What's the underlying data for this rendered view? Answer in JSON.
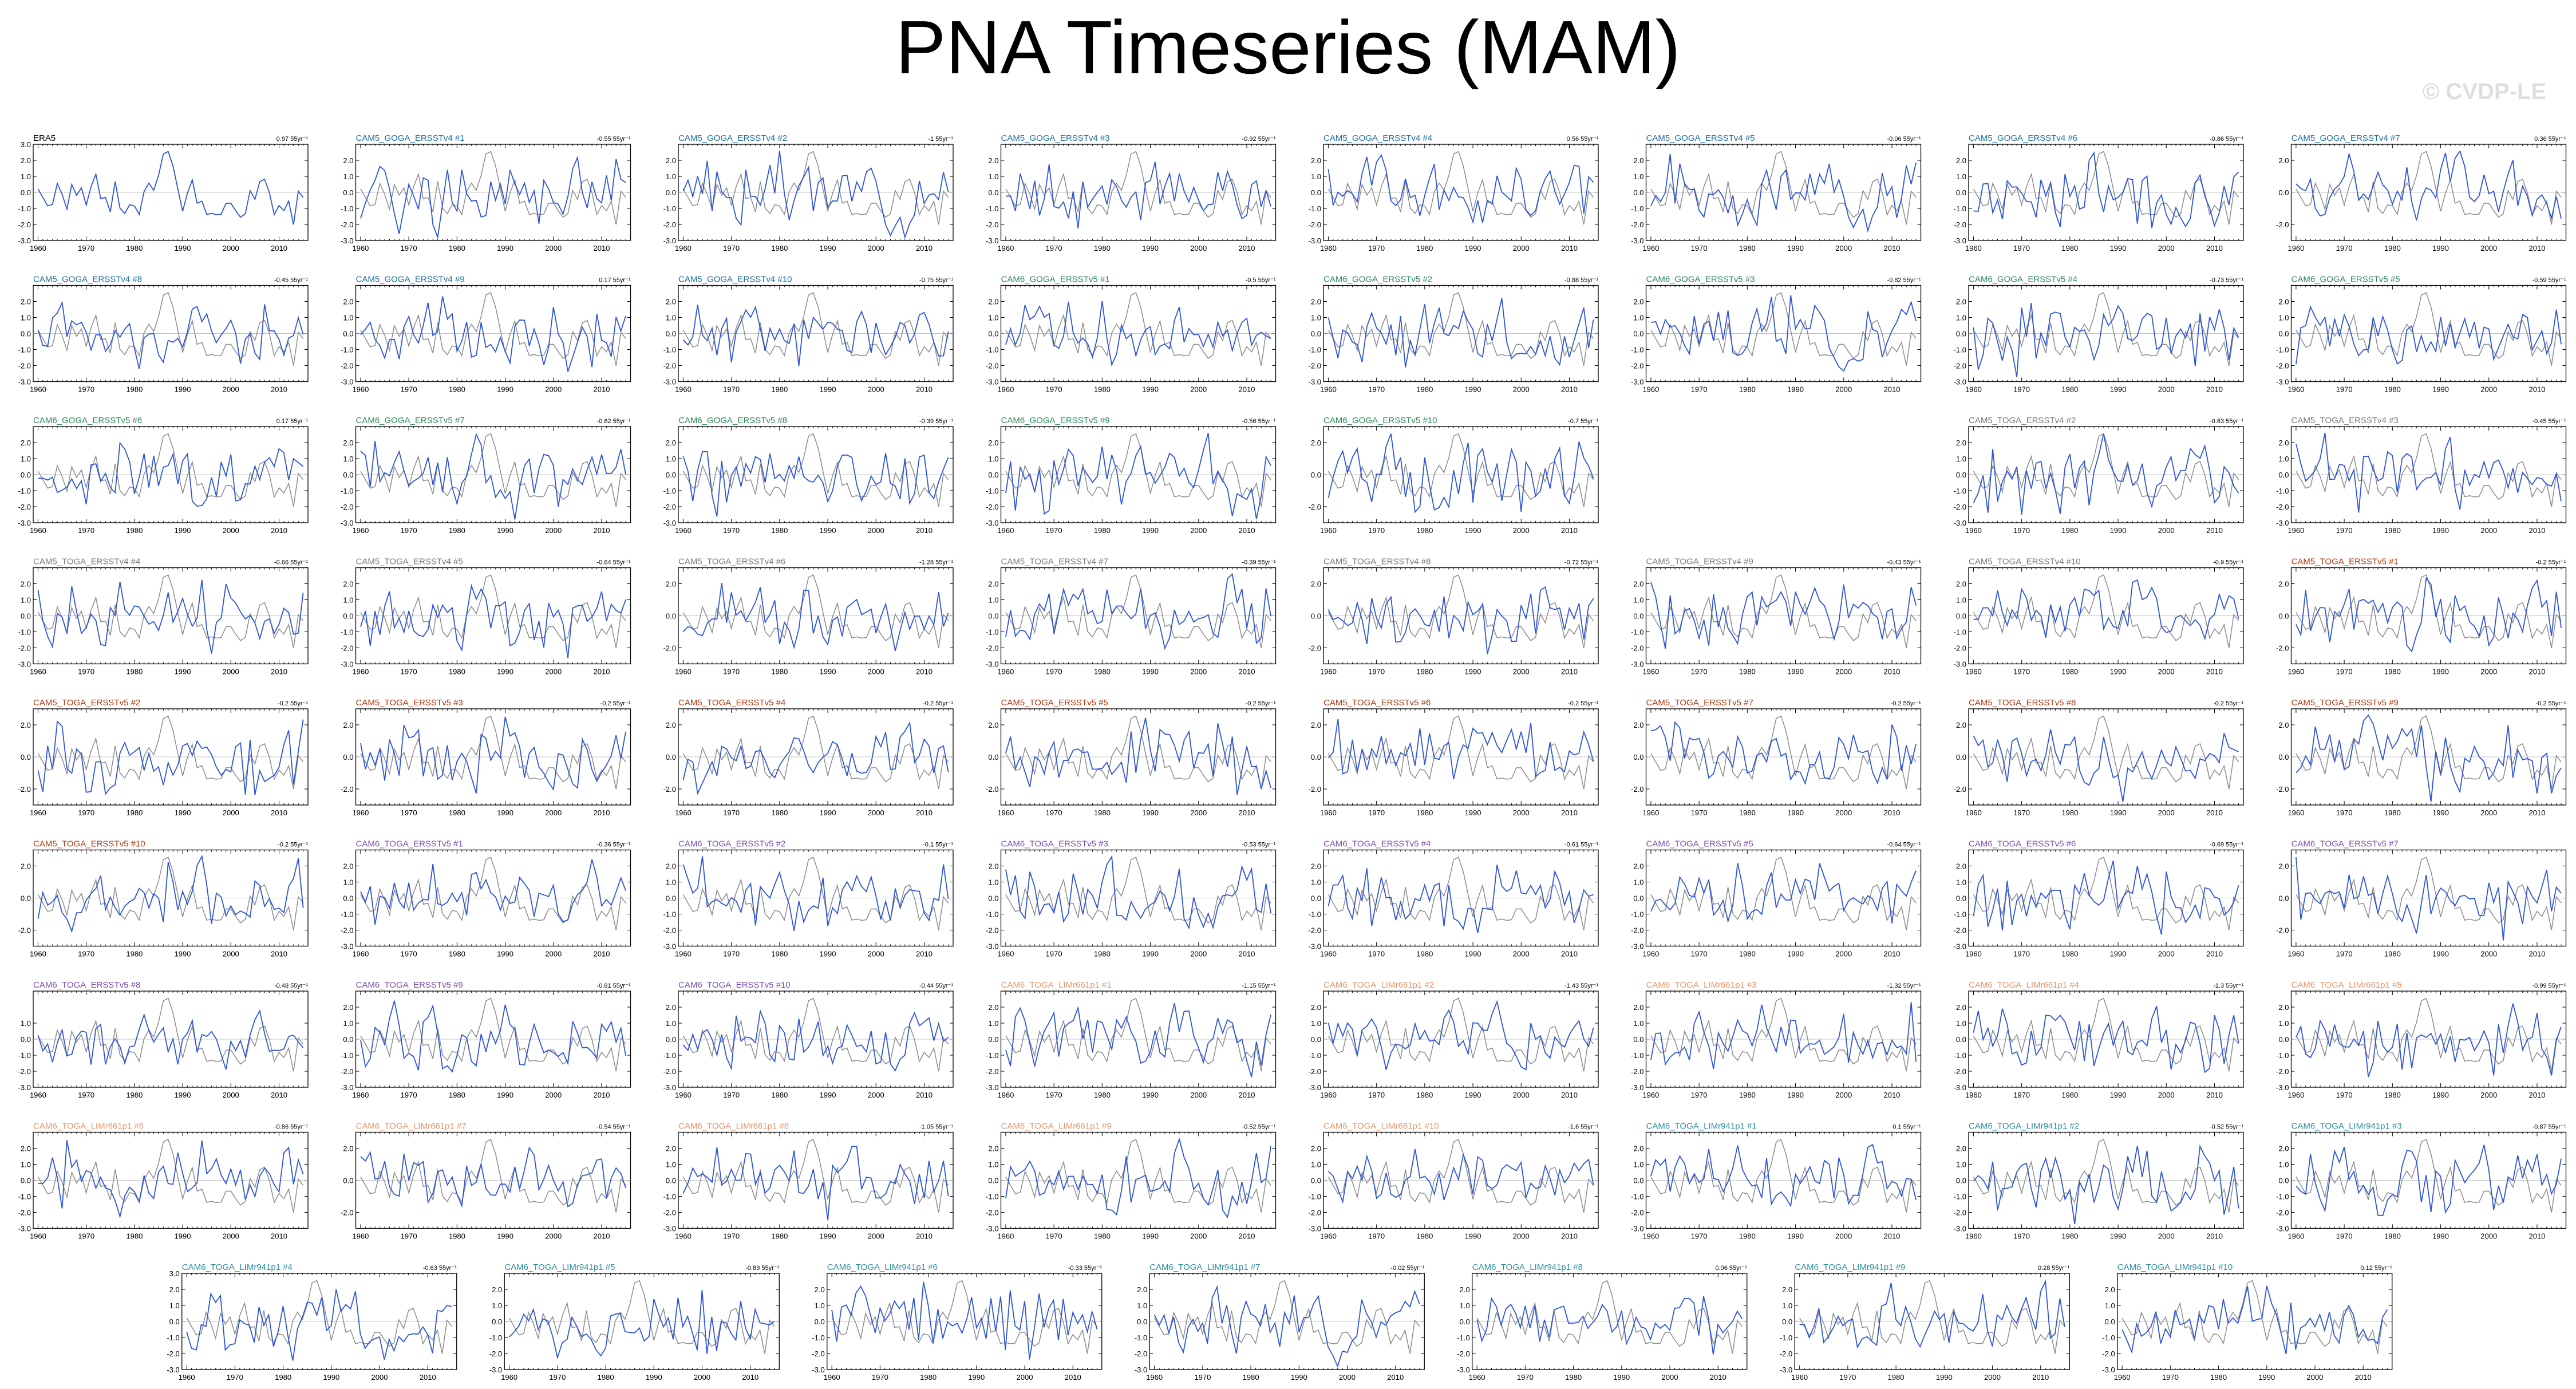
{
  "title": "PNA Timeseries (MAM)",
  "watermark": "© CVDP-LE",
  "colors": {
    "observed": "#8c8c8c",
    "simulated": "#2f55d4",
    "label_era5": "#000000",
    "label_goga_v4": "#1e6fa0",
    "label_goga_v5": "#2e8b57",
    "label_toga_v4": "#7a7a7a",
    "label_toga_v5": "#b03a12",
    "label_toga6_v5": "#7b4fb0",
    "label_liml661": "#e8956a",
    "label_liml941": "#2a8fa0"
  },
  "chart_data": {
    "type": "line",
    "layout": "small-multiples",
    "xlim": [
      1959,
      2016
    ],
    "ylim_default": [
      -3.0,
      3.0
    ],
    "xticks": [
      "1960",
      "1970",
      "1980",
      "1990",
      "2000",
      "2010"
    ],
    "series_names_each_panel": [],
    "panels": [
      {
        "label": "ERA5",
        "stat": "0.97 55yr⁻¹",
        "color": "label_era5",
        "seed": 1,
        "yticks": [
          "3.0",
          "2.0",
          "1.0",
          "0.0",
          "-1.0",
          "-2.0",
          "-3.0"
        ],
        "obs_only": true
      },
      {
        "label": "CAM5_GOGA_ERSSTv4 #1",
        "stat": "-0.55 55yr⁻¹",
        "color": "label_goga_v4",
        "seed": 2,
        "yticks": [
          "2.0",
          "1.0",
          "0.0",
          "-1.0",
          "-2.0",
          "-3.0"
        ]
      },
      {
        "label": "CAM5_GOGA_ERSSTv4 #2",
        "stat": "-1 55yr⁻¹",
        "color": "label_goga_v4",
        "seed": 3,
        "yticks": [
          "2.0",
          "1.0",
          "0.0",
          "-1.0",
          "-2.0",
          "-3.0"
        ]
      },
      {
        "label": "CAM5_GOGA_ERSSTv4 #3",
        "stat": "-0.92 55yr⁻¹",
        "color": "label_goga_v4",
        "seed": 4,
        "yticks": [
          "2.0",
          "1.0",
          "0.0",
          "-1.0",
          "-2.0",
          "-3.0"
        ]
      },
      {
        "label": "CAM5_GOGA_ERSSTv4 #4",
        "stat": "0.56 55yr⁻¹",
        "color": "label_goga_v4",
        "seed": 5,
        "yticks": [
          "2.0",
          "1.0",
          "0.0",
          "-1.0",
          "-2.0",
          "-3.0"
        ]
      },
      {
        "label": "CAM5_GOGA_ERSSTv4 #5",
        "stat": "-0.06 55yr⁻¹",
        "color": "label_goga_v4",
        "seed": 6,
        "yticks": [
          "2.0",
          "1.0",
          "0.0",
          "-1.0",
          "-2.0",
          "-3.0"
        ]
      },
      {
        "label": "CAM5_GOGA_ERSSTv4 #6",
        "stat": "-0.86 55yr⁻¹",
        "color": "label_goga_v4",
        "seed": 7,
        "yticks": [
          "2.0",
          "1.0",
          "0.0",
          "-1.0",
          "-2.0",
          "-3.0"
        ]
      },
      {
        "label": "CAM5_GOGA_ERSSTv4 #7",
        "stat": "0.36 55yr⁻¹",
        "color": "label_goga_v4",
        "seed": 8,
        "yticks": [
          "2.0",
          "0.0",
          "-2.0"
        ]
      },
      {
        "label": "CAM5_GOGA_ERSSTv4 #8",
        "stat": "-0.45 55yr⁻¹",
        "color": "label_goga_v4",
        "seed": 9,
        "yticks": [
          "2.0",
          "1.0",
          "0.0",
          "-1.0",
          "-2.0",
          "-3.0"
        ]
      },
      {
        "label": "CAM5_GOGA_ERSSTv4 #9",
        "stat": "0.17 55yr⁻¹",
        "color": "label_goga_v4",
        "seed": 10,
        "yticks": [
          "2.0",
          "1.0",
          "0.0",
          "-1.0",
          "-2.0",
          "-3.0"
        ]
      },
      {
        "label": "CAM5_GOGA_ERSSTv4 #10",
        "stat": "-0.75 55yr⁻¹",
        "color": "label_goga_v4",
        "seed": 11,
        "yticks": [
          "2.0",
          "1.0",
          "0.0",
          "-1.0",
          "-2.0",
          "-3.0"
        ]
      },
      {
        "label": "CAM6_GOGA_ERSSTv5 #1",
        "stat": "-0.5 55yr⁻¹",
        "color": "label_goga_v5",
        "seed": 12,
        "yticks": [
          "2.0",
          "1.0",
          "0.0",
          "-1.0",
          "-2.0",
          "-3.0"
        ]
      },
      {
        "label": "CAM6_GOGA_ERSSTv5 #2",
        "stat": "-0.88 55yr⁻¹",
        "color": "label_goga_v5",
        "seed": 13,
        "yticks": [
          "2.0",
          "1.0",
          "0.0",
          "-1.0",
          "-2.0",
          "-3.0"
        ]
      },
      {
        "label": "CAM6_GOGA_ERSSTv5 #3",
        "stat": "-0.82 55yr⁻¹",
        "color": "label_goga_v5",
        "seed": 14,
        "yticks": [
          "2.0",
          "1.0",
          "0.0",
          "-1.0",
          "-2.0",
          "-3.0"
        ]
      },
      {
        "label": "CAM6_GOGA_ERSSTv5 #4",
        "stat": "-0.73 55yr⁻¹",
        "color": "label_goga_v5",
        "seed": 15,
        "yticks": [
          "2.0",
          "1.0",
          "0.0",
          "-1.0",
          "-2.0",
          "-3.0"
        ]
      },
      {
        "label": "CAM6_GOGA_ERSSTv5 #5",
        "stat": "-0.59 55yr⁻¹",
        "color": "label_goga_v5",
        "seed": 16,
        "yticks": [
          "2.0",
          "1.0",
          "0.0",
          "-1.0",
          "-2.0",
          "-3.0"
        ]
      },
      {
        "label": "CAM6_GOGA_ERSSTv5 #6",
        "stat": "0.17 55yr⁻¹",
        "color": "label_goga_v5",
        "seed": 17,
        "yticks": [
          "2.0",
          "1.0",
          "0.0",
          "-1.0",
          "-2.0",
          "-3.0"
        ]
      },
      {
        "label": "CAM6_GOGA_ERSSTv5 #7",
        "stat": "-0.62 55yr⁻¹",
        "color": "label_goga_v5",
        "seed": 18,
        "yticks": [
          "2.0",
          "1.0",
          "0.0",
          "-1.0",
          "-2.0",
          "-3.0"
        ]
      },
      {
        "label": "CAM6_GOGA_ERSSTv5 #8",
        "stat": "-0.39 55yr⁻¹",
        "color": "label_goga_v5",
        "seed": 19,
        "yticks": [
          "2.0",
          "1.0",
          "0.0",
          "-1.0",
          "-2.0",
          "-3.0"
        ]
      },
      {
        "label": "CAM6_GOGA_ERSSTv5 #9",
        "stat": "-0.56 55yr⁻¹",
        "color": "label_goga_v5",
        "seed": 20,
        "yticks": [
          "2.0",
          "1.0",
          "0.0",
          "-1.0",
          "-2.0",
          "-3.0"
        ]
      },
      {
        "label": "CAM6_GOGA_ERSSTv5 #10",
        "stat": "-0.7 55yr⁻¹",
        "color": "label_goga_v5",
        "seed": 21,
        "yticks": [
          "2.0",
          "0.0",
          "-2.0"
        ]
      },
      null,
      {
        "label": "CAM5_TOGA_ERSSTv4 #2",
        "stat": "-0.63 55yr⁻¹",
        "color": "label_toga_v4",
        "seed": 22,
        "yticks": [
          "2.0",
          "1.0",
          "0.0",
          "-1.0",
          "-2.0",
          "-3.0"
        ]
      },
      {
        "label": "CAM5_TOGA_ERSSTv4 #3",
        "stat": "-0.45 55yr⁻¹",
        "color": "label_toga_v4",
        "seed": 23,
        "yticks": [
          "2.0",
          "1.0",
          "0.0",
          "-1.0",
          "-2.0",
          "-3.0"
        ]
      },
      {
        "label": "CAM5_TOGA_ERSSTv4 #4",
        "stat": "-0.66 55yr⁻¹",
        "color": "label_toga_v4",
        "seed": 24,
        "yticks": [
          "2.0",
          "1.0",
          "0.0",
          "-1.0",
          "-2.0",
          "-3.0"
        ]
      },
      {
        "label": "CAM5_TOGA_ERSSTv4 #5",
        "stat": "-0.64 55yr⁻¹",
        "color": "label_toga_v4",
        "seed": 25,
        "yticks": [
          "2.0",
          "1.0",
          "0.0",
          "-1.0",
          "-2.0",
          "-3.0"
        ]
      },
      {
        "label": "CAM5_TOGA_ERSSTv4 #6",
        "stat": "-1.28 55yr⁻¹",
        "color": "label_toga_v4",
        "seed": 26,
        "yticks": [
          "2.0",
          "0.0",
          "-2.0"
        ]
      },
      {
        "label": "CAM5_TOGA_ERSSTv4 #7",
        "stat": "-0.39 55yr⁻¹",
        "color": "label_toga_v4",
        "seed": 27,
        "yticks": [
          "2.0",
          "1.0",
          "0.0",
          "-1.0",
          "-2.0",
          "-3.0"
        ]
      },
      {
        "label": "CAM5_TOGA_ERSSTv4 #8",
        "stat": "-0.72 55yr⁻¹",
        "color": "label_toga_v4",
        "seed": 28,
        "yticks": [
          "2.0",
          "0.0",
          "-2.0"
        ]
      },
      {
        "label": "CAM5_TOGA_ERSSTv4 #9",
        "stat": "-0.43 55yr⁻¹",
        "color": "label_toga_v4",
        "seed": 29,
        "yticks": [
          "2.0",
          "1.0",
          "0.0",
          "-1.0",
          "-2.0",
          "-3.0"
        ]
      },
      {
        "label": "CAM5_TOGA_ERSSTv4 #10",
        "stat": "-0.9 55yr⁻¹",
        "color": "label_toga_v4",
        "seed": 30,
        "yticks": [
          "2.0",
          "1.0",
          "0.0",
          "-1.0",
          "-2.0",
          "-3.0"
        ]
      },
      {
        "label": "CAM5_TOGA_ERSSTv5 #1",
        "stat": "-0.2 55yr⁻¹",
        "color": "label_toga_v5",
        "seed": 31,
        "yticks": [
          "2.0",
          "0.0",
          "-2.0"
        ]
      },
      {
        "label": "CAM5_TOGA_ERSSTv5 #2",
        "stat": "-0.2 55yr⁻¹",
        "color": "label_toga_v5",
        "seed": 32,
        "yticks": [
          "2.0",
          "0.0",
          "-2.0"
        ]
      },
      {
        "label": "CAM5_TOGA_ERSSTv5 #3",
        "stat": "-0.2 55yr⁻¹",
        "color": "label_toga_v5",
        "seed": 33,
        "yticks": [
          "2.0",
          "0.0",
          "-2.0"
        ]
      },
      {
        "label": "CAM5_TOGA_ERSSTv5 #4",
        "stat": "-0.2 55yr⁻¹",
        "color": "label_toga_v5",
        "seed": 34,
        "yticks": [
          "2.0",
          "0.0",
          "-2.0"
        ]
      },
      {
        "label": "CAM5_TOGA_ERSSTv5 #5",
        "stat": "-0.2 55yr⁻¹",
        "color": "label_toga_v5",
        "seed": 35,
        "yticks": [
          "2.0",
          "0.0",
          "-2.0"
        ]
      },
      {
        "label": "CAM5_TOGA_ERSSTv5 #6",
        "stat": "-0.2 55yr⁻¹",
        "color": "label_toga_v5",
        "seed": 36,
        "yticks": [
          "2.0",
          "0.0",
          "-2.0"
        ]
      },
      {
        "label": "CAM5_TOGA_ERSSTv5 #7",
        "stat": "-0.2 55yr⁻¹",
        "color": "label_toga_v5",
        "seed": 37,
        "yticks": [
          "2.0",
          "0.0",
          "-2.0"
        ]
      },
      {
        "label": "CAM5_TOGA_ERSSTv5 #8",
        "stat": "-0.2 55yr⁻¹",
        "color": "label_toga_v5",
        "seed": 38,
        "yticks": [
          "2.0",
          "0.0",
          "-2.0"
        ]
      },
      {
        "label": "CAM5_TOGA_ERSSTv5 #9",
        "stat": "-0.2 55yr⁻¹",
        "color": "label_toga_v5",
        "seed": 39,
        "yticks": [
          "2.0",
          "0.0",
          "-2.0"
        ]
      },
      {
        "label": "CAM5_TOGA_ERSSTv5 #10",
        "stat": "-0.2 55yr⁻¹",
        "color": "label_toga_v5",
        "seed": 40,
        "yticks": [
          "2.0",
          "0.0",
          "-2.0"
        ]
      },
      {
        "label": "CAM6_TOGA_ERSSTv5 #1",
        "stat": "-0.36 55yr⁻¹",
        "color": "label_toga6_v5",
        "seed": 41,
        "yticks": [
          "2.0",
          "1.0",
          "0.0",
          "-1.0",
          "-2.0",
          "-3.0"
        ]
      },
      {
        "label": "CAM6_TOGA_ERSSTv5 #2",
        "stat": "-0.1 55yr⁻¹",
        "color": "label_toga6_v5",
        "seed": 42,
        "yticks": [
          "2.0",
          "1.0",
          "0.0",
          "-1.0",
          "-2.0",
          "-3.0"
        ]
      },
      {
        "label": "CAM6_TOGA_ERSSTv5 #3",
        "stat": "-0.53 55yr⁻¹",
        "color": "label_toga6_v5",
        "seed": 43,
        "yticks": [
          "2.0",
          "1.0",
          "0.0",
          "-1.0",
          "-2.0",
          "-3.0"
        ]
      },
      {
        "label": "CAM6_TOGA_ERSSTv5 #4",
        "stat": "-0.61 55yr⁻¹",
        "color": "label_toga6_v5",
        "seed": 44,
        "yticks": [
          "2.0",
          "1.0",
          "0.0",
          "-1.0",
          "-2.0",
          "-3.0"
        ]
      },
      {
        "label": "CAM6_TOGA_ERSSTv5 #5",
        "stat": "-0.64 55yr⁻¹",
        "color": "label_toga6_v5",
        "seed": 45,
        "yticks": [
          "2.0",
          "1.0",
          "0.0",
          "-1.0",
          "-2.0",
          "-3.0"
        ]
      },
      {
        "label": "CAM6_TOGA_ERSSTv5 #6",
        "stat": "-0.69 55yr⁻¹",
        "color": "label_toga6_v5",
        "seed": 46,
        "yticks": [
          "2.0",
          "1.0",
          "0.0",
          "-1.0",
          "-2.0",
          "-3.0"
        ]
      },
      {
        "label": "CAM6_TOGA_ERSSTv5 #7",
        "stat": "",
        "color": "label_toga6_v5",
        "seed": 47,
        "yticks": [
          "2.0",
          "0.0",
          "-2.0"
        ]
      },
      {
        "label": "CAM6_TOGA_ERSSTv5 #8",
        "stat": "-0.48 55yr⁻¹",
        "color": "label_toga6_v5",
        "seed": 48,
        "yticks": [
          "1.0",
          "0.0",
          "-1.0",
          "-2.0",
          "-3.0"
        ]
      },
      {
        "label": "CAM6_TOGA_ERSSTv5 #9",
        "stat": "-0.81 55yr⁻¹",
        "color": "label_toga6_v5",
        "seed": 49,
        "yticks": [
          "2.0",
          "1.0",
          "0.0",
          "-1.0",
          "-2.0",
          "-3.0"
        ]
      },
      {
        "label": "CAM6_TOGA_ERSSTv5 #10",
        "stat": "-0.44 55yr⁻¹",
        "color": "label_toga6_v5",
        "seed": 50,
        "yticks": [
          "2.0",
          "1.0",
          "0.0",
          "-1.0",
          "-2.0",
          "-3.0"
        ]
      },
      {
        "label": "CAM6_TOGA_LIMr661p1 #1",
        "stat": "-1.15 55yr⁻¹",
        "color": "label_liml661",
        "seed": 51,
        "yticks": [
          "2.0",
          "1.0",
          "0.0",
          "-1.0",
          "-2.0",
          "-3.0"
        ]
      },
      {
        "label": "CAM6_TOGA_LIMr661p1 #2",
        "stat": "-1.43 55yr⁻¹",
        "color": "label_liml661",
        "seed": 52,
        "yticks": [
          "2.0",
          "1.0",
          "0.0",
          "-1.0",
          "-2.0",
          "-3.0"
        ]
      },
      {
        "label": "CAM6_TOGA_LIMr661p1 #3",
        "stat": "-1.32 55yr⁻¹",
        "color": "label_liml661",
        "seed": 53,
        "yticks": [
          "2.0",
          "1.0",
          "0.0",
          "-1.0",
          "-2.0",
          "-3.0"
        ]
      },
      {
        "label": "CAM6_TOGA_LIMr661p1 #4",
        "stat": "-1.3 55yr⁻¹",
        "color": "label_liml661",
        "seed": 54,
        "yticks": [
          "2.0",
          "1.0",
          "0.0",
          "-1.0",
          "-2.0",
          "-3.0"
        ]
      },
      {
        "label": "CAM6_TOGA_LIMr661p1 #5",
        "stat": "-0.99 55yr⁻¹",
        "color": "label_liml661",
        "seed": 55,
        "yticks": [
          "2.0",
          "1.0",
          "0.0",
          "-1.0",
          "-2.0",
          "-3.0"
        ]
      },
      {
        "label": "CAM6_TOGA_LIMr661p1 #6",
        "stat": "-0.86 55yr⁻¹",
        "color": "label_liml661",
        "seed": 56,
        "yticks": [
          "2.0",
          "1.0",
          "0.0",
          "-1.0",
          "-2.0",
          "-3.0"
        ]
      },
      {
        "label": "CAM6_TOGA_LIMr661p1 #7",
        "stat": "-0.54 55yr⁻¹",
        "color": "label_liml661",
        "seed": 57,
        "yticks": [
          "2.0",
          "0.0",
          "-2.0"
        ]
      },
      {
        "label": "CAM6_TOGA_LIMr661p1 #8",
        "stat": "-1.05 55yr⁻¹",
        "color": "label_liml661",
        "seed": 58,
        "yticks": [
          "2.0",
          "1.0",
          "0.0",
          "-1.0",
          "-2.0",
          "-3.0"
        ]
      },
      {
        "label": "CAM6_TOGA_LIMr661p1 #9",
        "stat": "-0.52 55yr⁻¹",
        "color": "label_liml661",
        "seed": 59,
        "yticks": [
          "2.0",
          "1.0",
          "0.0",
          "-1.0",
          "-2.0",
          "-3.0"
        ]
      },
      {
        "label": "CAM6_TOGA_LIMr661p1 #10",
        "stat": "-1.6 55yr⁻¹",
        "color": "label_liml661",
        "seed": 60,
        "yticks": [
          "2.0",
          "1.0",
          "0.0",
          "-1.0",
          "-2.0",
          "-3.0"
        ]
      },
      {
        "label": "CAM6_TOGA_LIMr941p1 #1",
        "stat": "0.1 55yr⁻¹",
        "color": "label_liml941",
        "seed": 61,
        "yticks": [
          "2.0",
          "1.0",
          "0.0",
          "-1.0",
          "-2.0",
          "-3.0"
        ]
      },
      {
        "label": "CAM6_TOGA_LIMr941p1 #2",
        "stat": "-0.52 55yr⁻¹",
        "color": "label_liml941",
        "seed": 62,
        "yticks": [
          "2.0",
          "1.0",
          "0.0",
          "-1.0",
          "-2.0",
          "-3.0"
        ]
      },
      {
        "label": "CAM6_TOGA_LIMr941p1 #3",
        "stat": "-0.87 55yr⁻¹",
        "color": "label_liml941",
        "seed": 63,
        "yticks": [
          "2.0",
          "1.0",
          "0.0",
          "-1.0",
          "-2.0",
          "-3.0"
        ]
      },
      {
        "label": "CAM6_TOGA_LIMr941p1 #4",
        "stat": "-0.63 55yr⁻¹",
        "color": "label_liml941",
        "seed": 64,
        "yticks": [
          "3.0",
          "2.0",
          "1.0",
          "0.0",
          "-1.0",
          "-2.0",
          "-3.0"
        ]
      },
      {
        "label": "CAM6_TOGA_LIMr941p1 #5",
        "stat": "-0.89 55yr⁻¹",
        "color": "label_liml941",
        "seed": 65,
        "yticks": [
          "2.0",
          "1.0",
          "0.0",
          "-1.0",
          "-2.0",
          "-3.0"
        ]
      },
      {
        "label": "CAM6_TOGA_LIMr941p1 #6",
        "stat": "-0.33 55yr⁻¹",
        "color": "label_liml941",
        "seed": 66,
        "yticks": [
          "2.0",
          "1.0",
          "0.0",
          "-1.0",
          "-2.0",
          "-3.0"
        ]
      },
      {
        "label": "CAM6_TOGA_LIMr941p1 #7",
        "stat": "-0.02 55yr⁻¹",
        "color": "label_liml941",
        "seed": 67,
        "yticks": [
          "2.0",
          "1.0",
          "0.0",
          "-1.0",
          "-2.0",
          "-3.0"
        ]
      },
      {
        "label": "CAM6_TOGA_LIMr941p1 #8",
        "stat": "0.06 55yr⁻¹",
        "color": "label_liml941",
        "seed": 68,
        "yticks": [
          "2.0",
          "1.0",
          "0.0",
          "-1.0",
          "-2.0",
          "-3.0"
        ]
      },
      {
        "label": "CAM6_TOGA_LIMr941p1 #9",
        "stat": "0.28 55yr⁻¹",
        "color": "label_liml941",
        "seed": 69,
        "yticks": [
          "2.0",
          "1.0",
          "0.0",
          "-1.0",
          "-2.0",
          "-3.0"
        ]
      },
      {
        "label": "CAM6_TOGA_LIMr941p1 #10",
        "stat": "0.12 55yr⁻¹",
        "color": "label_liml941",
        "seed": 70,
        "yticks": [
          "2.0",
          "1.0",
          "0.0",
          "-1.0",
          "-2.0",
          "-3.0"
        ]
      }
    ]
  }
}
